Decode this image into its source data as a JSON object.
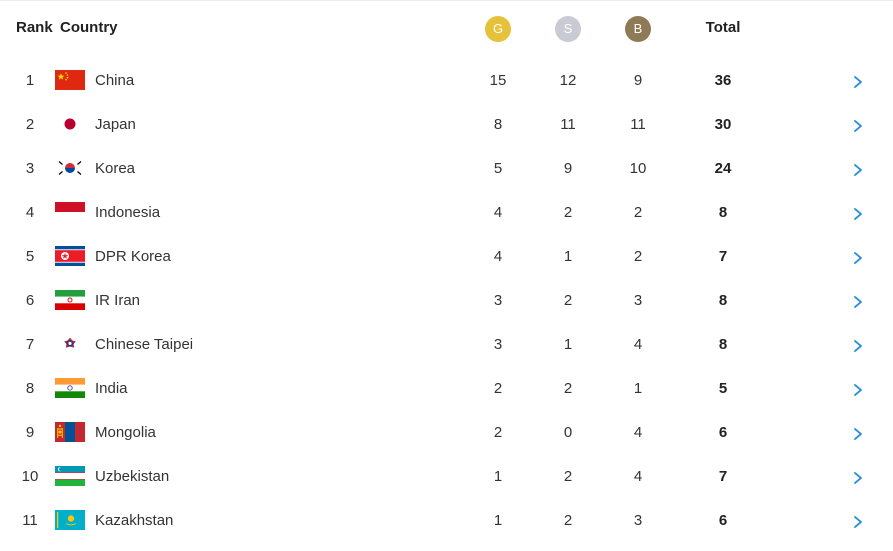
{
  "header": {
    "rank": "Rank",
    "country": "Country",
    "gold": "G",
    "silver": "S",
    "bronze": "B",
    "total": "Total"
  },
  "colors": {
    "gold": "#e5c23a",
    "silver": "#c8cbd3",
    "bronze": "#8f7a58",
    "chevron": "#2f8fd8"
  },
  "rows": [
    {
      "rank": "1",
      "country": "China",
      "flag": "flag-china-icon",
      "gold": "15",
      "silver": "12",
      "bronze": "9",
      "total": "36"
    },
    {
      "rank": "2",
      "country": "Japan",
      "flag": "flag-japan-icon",
      "gold": "8",
      "silver": "11",
      "bronze": "11",
      "total": "30"
    },
    {
      "rank": "3",
      "country": "Korea",
      "flag": "flag-korea-icon",
      "gold": "5",
      "silver": "9",
      "bronze": "10",
      "total": "24"
    },
    {
      "rank": "4",
      "country": "Indonesia",
      "flag": "flag-indonesia-icon",
      "gold": "4",
      "silver": "2",
      "bronze": "2",
      "total": "8"
    },
    {
      "rank": "5",
      "country": "DPR Korea",
      "flag": "flag-dpr-korea-icon",
      "gold": "4",
      "silver": "1",
      "bronze": "2",
      "total": "7"
    },
    {
      "rank": "6",
      "country": "IR Iran",
      "flag": "flag-iran-icon",
      "gold": "3",
      "silver": "2",
      "bronze": "3",
      "total": "8"
    },
    {
      "rank": "7",
      "country": "Chinese Taipei",
      "flag": "flag-chinese-taipei-icon",
      "gold": "3",
      "silver": "1",
      "bronze": "4",
      "total": "8"
    },
    {
      "rank": "8",
      "country": "India",
      "flag": "flag-india-icon",
      "gold": "2",
      "silver": "2",
      "bronze": "1",
      "total": "5"
    },
    {
      "rank": "9",
      "country": "Mongolia",
      "flag": "flag-mongolia-icon",
      "gold": "2",
      "silver": "0",
      "bronze": "4",
      "total": "6"
    },
    {
      "rank": "10",
      "country": "Uzbekistan",
      "flag": "flag-uzbekistan-icon",
      "gold": "1",
      "silver": "2",
      "bronze": "4",
      "total": "7"
    },
    {
      "rank": "11",
      "country": "Kazakhstan",
      "flag": "flag-kazakhstan-icon",
      "gold": "1",
      "silver": "2",
      "bronze": "3",
      "total": "6"
    }
  ]
}
